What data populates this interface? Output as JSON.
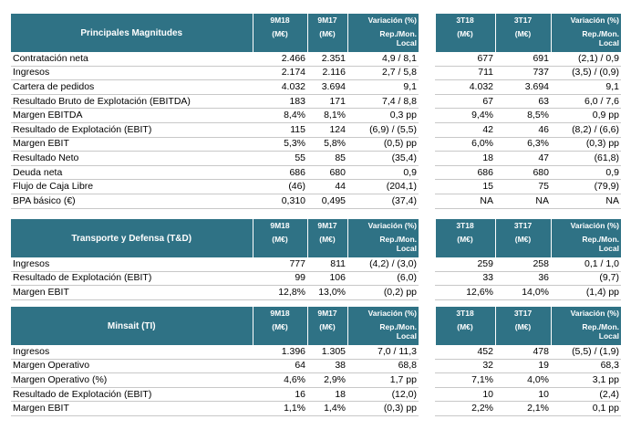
{
  "tables": [
    {
      "title": "Principales Magnitudes",
      "columns": [
        [
          "9M18",
          "(M€)"
        ],
        [
          "9M17",
          "(M€)"
        ],
        [
          "Variación (%)",
          "Rep./Mon.",
          "Local"
        ],
        [
          "3T18",
          "(M€)"
        ],
        [
          "3T17",
          "(M€)"
        ],
        [
          "Variación (%)",
          "Rep./Mon.",
          "Local"
        ]
      ],
      "rows": [
        [
          "Contratación neta",
          "2.466",
          "2.351",
          "4,9 / 8,1",
          "677",
          "691",
          "(2,1) / 0,9"
        ],
        [
          "Ingresos",
          "2.174",
          "2.116",
          "2,7 / 5,8",
          "711",
          "737",
          "(3,5) / (0,9)"
        ],
        [
          "Cartera de pedidos",
          "4.032",
          "3.694",
          "9,1",
          "4.032",
          "3.694",
          "9,1"
        ],
        [
          "Resultado Bruto de Explotación (EBITDA)",
          "183",
          "171",
          "7,4 / 8,8",
          "67",
          "63",
          "6,0 / 7,6"
        ],
        [
          "Margen EBITDA",
          "8,4%",
          "8,1%",
          "0,3 pp",
          "9,4%",
          "8,5%",
          "0,9 pp"
        ],
        [
          "Resultado de Explotación (EBIT)",
          "115",
          "124",
          "(6,9) / (5,5)",
          "42",
          "46",
          "(8,2) / (6,6)"
        ],
        [
          "Margen EBIT",
          "5,3%",
          "5,8%",
          "(0,5) pp",
          "6,0%",
          "6,3%",
          "(0,3) pp"
        ],
        [
          "Resultado Neto",
          "55",
          "85",
          "(35,4)",
          "18",
          "47",
          "(61,8)"
        ],
        [
          "Deuda neta",
          "686",
          "680",
          "0,9",
          "686",
          "680",
          "0,9"
        ],
        [
          "Flujo de Caja Libre",
          "(46)",
          "44",
          "(204,1)",
          "15",
          "75",
          "(79,9)"
        ],
        [
          "BPA básico (€)",
          "0,310",
          "0,495",
          "(37,4)",
          "NA",
          "NA",
          "NA"
        ]
      ]
    },
    {
      "title": "Transporte y Defensa (T&D)",
      "columns": [
        [
          "9M18",
          "(M€)"
        ],
        [
          "9M17",
          "(M€)"
        ],
        [
          "Variación (%)",
          "Rep./Mon.",
          "Local"
        ],
        [
          "3T18",
          "(M€)"
        ],
        [
          "3T17",
          "(M€)"
        ],
        [
          "Variación (%)",
          "Rep./Mon.",
          "Local"
        ]
      ],
      "rows": [
        [
          "Ingresos",
          "777",
          "811",
          "(4,2) / (3,0)",
          "259",
          "258",
          "0,1 / 1,0"
        ],
        [
          "Resultado de Explotación (EBIT)",
          "99",
          "106",
          "(6,0)",
          "33",
          "36",
          "(9,7)"
        ],
        [
          "Margen EBIT",
          "12,8%",
          "13,0%",
          "(0,2) pp",
          "12,6%",
          "14,0%",
          "(1,4) pp"
        ]
      ]
    },
    {
      "title": "Minsait (TI)",
      "columns": [
        [
          "9M18",
          "(M€)"
        ],
        [
          "9M17",
          "(M€)"
        ],
        [
          "Variación (%)",
          "Rep./Mon.",
          "Local"
        ],
        [
          "3T18",
          "(M€)"
        ],
        [
          "3T17",
          "(M€)"
        ],
        [
          "Variación (%)",
          "Rep./Mon.",
          "Local"
        ]
      ],
      "rows": [
        [
          "Ingresos",
          "1.396",
          "1.305",
          "7,0 / 11,3",
          "452",
          "478",
          "(5,5) / (1,9)"
        ],
        [
          "Margen Operativo",
          "64",
          "38",
          "68,8",
          "32",
          "19",
          "68,3"
        ],
        [
          "Margen Operativo (%)",
          "4,6%",
          "2,9%",
          "1,7 pp",
          "7,1%",
          "4,0%",
          "3,1 pp"
        ],
        [
          "Resultado de Explotación (EBIT)",
          "16",
          "18",
          "(12,0)",
          "10",
          "10",
          "(2,4)"
        ],
        [
          "Margen EBIT",
          "1,1%",
          "1,4%",
          "(0,3) pp",
          "2,2%",
          "2,1%",
          "0,1 pp"
        ]
      ]
    }
  ]
}
